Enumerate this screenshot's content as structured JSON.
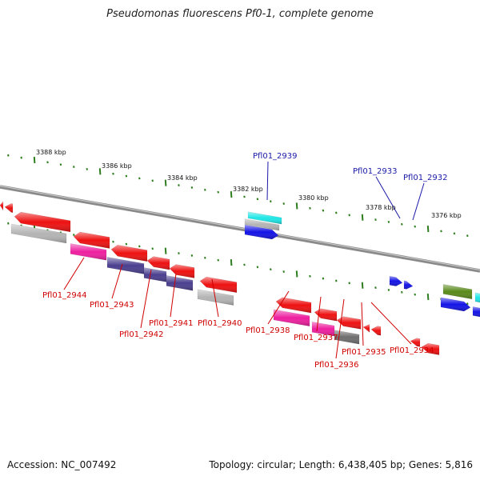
{
  "title": "Pseudomonas fluorescens Pf0-1, complete genome",
  "accession_text": "Accession: NC_007492",
  "summary_text": "Topology: circular; Length: 6,438,405 bp; Genes: 5,816",
  "colors": {
    "backbone": "#8a8a8a",
    "tick": "#2e7d1e",
    "blue_label": "#1a1aa8",
    "red_label": "#d00000",
    "gene_red": "#ee1111",
    "gene_magenta": "#ee1f9f",
    "gene_purple": "#4a3f8f",
    "gene_gray": "#b4b4b4",
    "gene_darkgray": "#6e6e6e",
    "gene_cyan": "#1fe6e6",
    "gene_blue": "#1414e6",
    "gene_olive": "#5a8a1a"
  },
  "scale_labels": [
    "3388 kbp",
    "3386 kbp",
    "3384 kbp",
    "3382 kbp",
    "3380 kbp",
    "3378 kbp",
    "3376 kbp"
  ],
  "gene_labels": [
    {
      "text": "Pfl01_2939",
      "strand": "forward"
    },
    {
      "text": "Pfl01_2933",
      "strand": "forward"
    },
    {
      "text": "Pfl01_2932",
      "strand": "forward"
    },
    {
      "text": "Pfl01_2944",
      "strand": "reverse"
    },
    {
      "text": "Pfl01_2943",
      "strand": "reverse"
    },
    {
      "text": "Pfl01_2942",
      "strand": "reverse"
    },
    {
      "text": "Pfl01_2941",
      "strand": "reverse"
    },
    {
      "text": "Pfl01_2940",
      "strand": "reverse"
    },
    {
      "text": "Pfl01_2938",
      "strand": "reverse"
    },
    {
      "text": "Pfl01_2937",
      "strand": "reverse"
    },
    {
      "text": "Pfl01_2936",
      "strand": "reverse"
    },
    {
      "text": "Pfl01_2935",
      "strand": "reverse"
    },
    {
      "text": "Pfl01_2934",
      "strand": "reverse"
    }
  ]
}
